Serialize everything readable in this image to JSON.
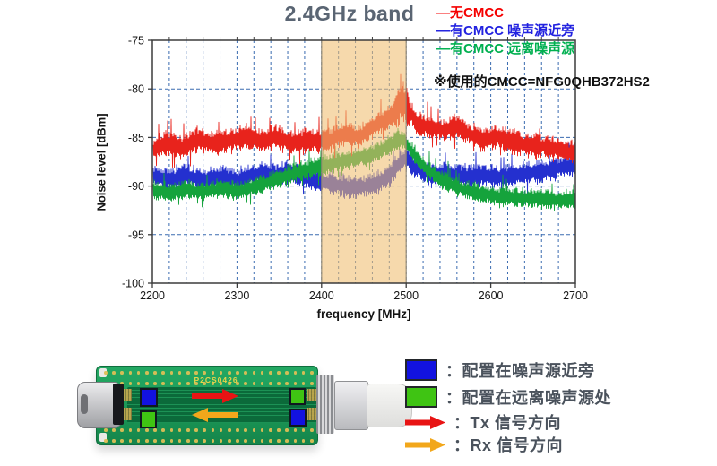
{
  "chart_data": {
    "type": "line",
    "title": "2.4GHz band",
    "note": "※使用的CMCC=NFG0QHB372HS2",
    "xlabel": "frequency [MHz]",
    "ylabel": "Noise level [dBm]",
    "xlim": [
      2200,
      2700
    ],
    "ylim": [
      -100,
      -75
    ],
    "xticks": [
      2200,
      2300,
      2400,
      2500,
      2600,
      2700
    ],
    "yticks": [
      -75,
      -80,
      -85,
      -90,
      -95,
      -100
    ],
    "x_minor_step": 20,
    "grid": true,
    "grid_color": "#3a6bb0",
    "axis_color": "#3b3b3b",
    "legend_position": "top-right",
    "highlight_band": {
      "from": 2400,
      "to": 2500,
      "fill": "#efbe70",
      "opacity": 0.58,
      "edge": "#8f8672"
    },
    "legend": [
      {
        "label": "—无CMCC",
        "color": "#f50000"
      },
      {
        "label": "—有CMCC 噪声源近旁",
        "color": "#2222e0"
      },
      {
        "label": "—有CMCC 远离噪声源",
        "color": "#00b050"
      }
    ],
    "series": [
      {
        "name": "无CMCC",
        "color": "#e8231c",
        "noise_db": 1.5,
        "seed": 7,
        "peak_boost": {
          "from": 2487,
          "to": 2503,
          "factor": 1.9
        },
        "anchors": [
          [
            2200,
            -86.2
          ],
          [
            2215,
            -85.6
          ],
          [
            2235,
            -86.0
          ],
          [
            2255,
            -85.1
          ],
          [
            2270,
            -85.6
          ],
          [
            2290,
            -85.3
          ],
          [
            2310,
            -84.9
          ],
          [
            2330,
            -85.4
          ],
          [
            2345,
            -84.9
          ],
          [
            2365,
            -85.6
          ],
          [
            2385,
            -85.2
          ],
          [
            2400,
            -85.4
          ],
          [
            2415,
            -85.0
          ],
          [
            2430,
            -84.6
          ],
          [
            2445,
            -84.9
          ],
          [
            2460,
            -83.9
          ],
          [
            2475,
            -83.2
          ],
          [
            2488,
            -82.2
          ],
          [
            2496,
            -81.0
          ],
          [
            2502,
            -82.0
          ],
          [
            2512,
            -83.6
          ],
          [
            2525,
            -83.9
          ],
          [
            2545,
            -84.2
          ],
          [
            2560,
            -83.9
          ],
          [
            2575,
            -84.6
          ],
          [
            2590,
            -85.2
          ],
          [
            2605,
            -84.9
          ],
          [
            2625,
            -85.4
          ],
          [
            2645,
            -85.8
          ],
          [
            2665,
            -85.9
          ],
          [
            2685,
            -86.3
          ],
          [
            2700,
            -86.6
          ]
        ]
      },
      {
        "name": "有CMCC 噪声源近旁",
        "color": "#2430cf",
        "noise_db": 1.4,
        "seed": 13,
        "anchors": [
          [
            2200,
            -88.9
          ],
          [
            2220,
            -89.3
          ],
          [
            2240,
            -88.9
          ],
          [
            2260,
            -89.4
          ],
          [
            2280,
            -89.0
          ],
          [
            2300,
            -89.4
          ],
          [
            2315,
            -88.9
          ],
          [
            2330,
            -88.6
          ],
          [
            2345,
            -88.9
          ],
          [
            2360,
            -88.5
          ],
          [
            2375,
            -88.9
          ],
          [
            2390,
            -89.3
          ],
          [
            2405,
            -89.6
          ],
          [
            2420,
            -89.9
          ],
          [
            2435,
            -90.1
          ],
          [
            2450,
            -90.0
          ],
          [
            2465,
            -89.7
          ],
          [
            2480,
            -88.9
          ],
          [
            2492,
            -87.6
          ],
          [
            2500,
            -87.0
          ],
          [
            2508,
            -87.9
          ],
          [
            2520,
            -88.5
          ],
          [
            2535,
            -88.8
          ],
          [
            2550,
            -88.7
          ],
          [
            2570,
            -89.0
          ],
          [
            2590,
            -88.8
          ],
          [
            2610,
            -89.1
          ],
          [
            2630,
            -88.8
          ],
          [
            2650,
            -88.6
          ],
          [
            2670,
            -88.3
          ],
          [
            2685,
            -88.0
          ],
          [
            2700,
            -87.9
          ]
        ]
      },
      {
        "name": "有CMCC 远离噪声源",
        "color": "#15a33c",
        "noise_db": 1.2,
        "seed": 21,
        "anchors": [
          [
            2200,
            -90.4
          ],
          [
            2220,
            -90.7
          ],
          [
            2240,
            -90.3
          ],
          [
            2260,
            -90.6
          ],
          [
            2280,
            -90.2
          ],
          [
            2300,
            -90.5
          ],
          [
            2315,
            -90.1
          ],
          [
            2330,
            -89.8
          ],
          [
            2345,
            -89.3
          ],
          [
            2360,
            -88.9
          ],
          [
            2375,
            -88.5
          ],
          [
            2390,
            -88.1
          ],
          [
            2405,
            -87.8
          ],
          [
            2420,
            -87.5
          ],
          [
            2435,
            -87.2
          ],
          [
            2450,
            -86.9
          ],
          [
            2465,
            -86.5
          ],
          [
            2478,
            -85.9
          ],
          [
            2490,
            -85.1
          ],
          [
            2498,
            -85.3
          ],
          [
            2506,
            -86.4
          ],
          [
            2515,
            -87.4
          ],
          [
            2525,
            -88.3
          ],
          [
            2540,
            -89.2
          ],
          [
            2555,
            -89.9
          ],
          [
            2570,
            -90.4
          ],
          [
            2590,
            -90.8
          ],
          [
            2610,
            -91.0
          ],
          [
            2635,
            -91.2
          ],
          [
            2660,
            -91.3
          ],
          [
            2680,
            -91.4
          ],
          [
            2700,
            -91.4
          ]
        ]
      }
    ]
  },
  "pcb": {
    "board_label": "P2CS0426",
    "markers": {
      "left_top": "#1212e0",
      "left_bottom": "#3fc413",
      "right_top": "#3fc413",
      "right_bottom": "#1212e0"
    },
    "arrows": {
      "tx": {
        "color": "#e81414",
        "direction": "right"
      },
      "rx": {
        "color": "#f2a71b",
        "direction": "left"
      }
    },
    "legend": [
      {
        "swatch": "blue-square",
        "color": "#1212e0",
        "label": "：配置在噪声源近旁"
      },
      {
        "swatch": "green-square",
        "color": "#3fc413",
        "label": "：配置在远离噪声源处"
      },
      {
        "swatch": "red-arrow",
        "color": "#e81414",
        "label": "：Tx 信号方向"
      },
      {
        "swatch": "orange-arrow",
        "color": "#f2a71b",
        "label": "：Rx 信号方向"
      }
    ]
  }
}
